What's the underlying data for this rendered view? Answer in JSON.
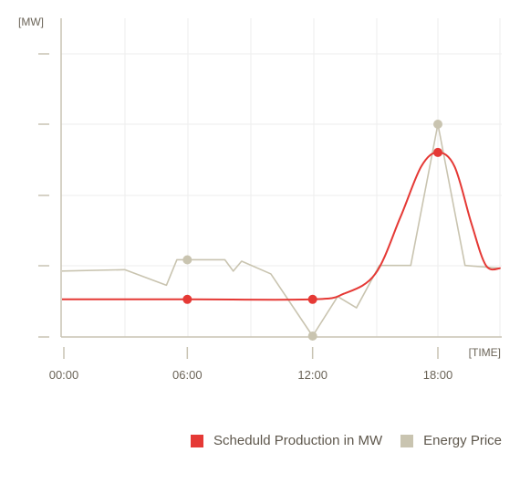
{
  "chart_data": {
    "type": "line",
    "y_unit_label": "[MW]",
    "x_unit_label": "[TIME]",
    "x_ticks": [
      "00:00",
      "06:00",
      "12:00",
      "18:00"
    ],
    "x_range_hours": [
      0,
      21
    ],
    "y_range": [
      0,
      100
    ],
    "grid": true,
    "legend_position": "bottom-right",
    "colors": {
      "production": "#e53935",
      "price": "#c9c4b0",
      "axis": "#c9c3b3",
      "grid": "#eeeeee"
    },
    "series": [
      {
        "name": "Scheduld Production in MW",
        "key": "production",
        "curve": "smooth",
        "points": [
          {
            "t": 0,
            "v": 13
          },
          {
            "t": 6,
            "v": 13
          },
          {
            "t": 12,
            "v": 13
          },
          {
            "t": 13.5,
            "v": 15
          },
          {
            "t": 15,
            "v": 22
          },
          {
            "t": 16.2,
            "v": 42
          },
          {
            "t": 17.2,
            "v": 60
          },
          {
            "t": 18,
            "v": 65
          },
          {
            "t": 18.8,
            "v": 60
          },
          {
            "t": 19.6,
            "v": 40
          },
          {
            "t": 20.3,
            "v": 25
          },
          {
            "t": 21,
            "v": 24
          }
        ],
        "markers_at": [
          6,
          12,
          18
        ]
      },
      {
        "name": "Energy Price",
        "key": "price",
        "curve": "linear",
        "points": [
          {
            "t": 0,
            "v": 23
          },
          {
            "t": 3,
            "v": 23.5
          },
          {
            "t": 5,
            "v": 18
          },
          {
            "t": 5.5,
            "v": 27
          },
          {
            "t": 6,
            "v": 27
          },
          {
            "t": 7.8,
            "v": 27
          },
          {
            "t": 8.2,
            "v": 23
          },
          {
            "t": 8.6,
            "v": 26.5
          },
          {
            "t": 10,
            "v": 22
          },
          {
            "t": 12,
            "v": 0
          },
          {
            "t": 13.2,
            "v": 14
          },
          {
            "t": 14.1,
            "v": 10
          },
          {
            "t": 15.2,
            "v": 25
          },
          {
            "t": 16.7,
            "v": 25
          },
          {
            "t": 18,
            "v": 75
          },
          {
            "t": 19.3,
            "v": 25
          },
          {
            "t": 21,
            "v": 24
          }
        ],
        "markers_at": [
          6,
          12,
          18
        ]
      }
    ]
  }
}
